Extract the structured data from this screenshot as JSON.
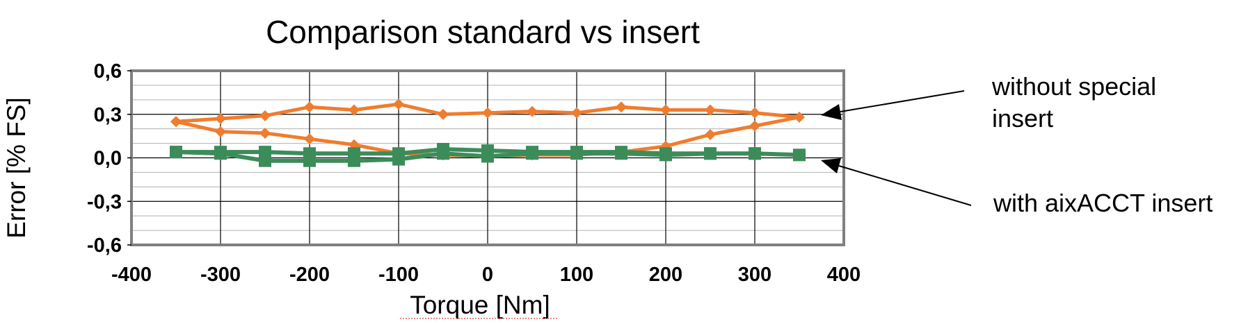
{
  "chart_data": {
    "type": "line",
    "title": "Comparison standard vs insert",
    "xlabel": "Torque [Nm]",
    "ylabel": "Error [% FS]",
    "xlim": [
      -400,
      400
    ],
    "ylim": [
      -0.6,
      0.6
    ],
    "x_ticks": [
      -400,
      -300,
      -200,
      -100,
      0,
      100,
      200,
      300,
      400
    ],
    "x_tick_labels": [
      "-400",
      "-300",
      "-200",
      "-100",
      "0",
      "100",
      "200",
      "300",
      "400"
    ],
    "y_ticks": [
      0.6,
      0.3,
      0.0,
      -0.3,
      -0.6
    ],
    "y_tick_labels": [
      "0,6",
      "0,3",
      "0,0",
      "-0,3",
      "-0,6"
    ],
    "grid": true,
    "series": [
      {
        "color": "#F07C2E",
        "marker": "diamond",
        "points": [
          [
            -350,
            0.25
          ],
          [
            -300,
            0.27
          ],
          [
            -250,
            0.29
          ],
          [
            -200,
            0.35
          ],
          [
            -150,
            0.33
          ],
          [
            -100,
            0.37
          ],
          [
            -50,
            0.3
          ],
          [
            0,
            0.31
          ],
          [
            50,
            0.32
          ],
          [
            100,
            0.31
          ],
          [
            150,
            0.35
          ],
          [
            200,
            0.33
          ],
          [
            250,
            0.33
          ],
          [
            300,
            0.31
          ],
          [
            350,
            0.28
          ],
          [
            300,
            0.22
          ],
          [
            250,
            0.16
          ],
          [
            200,
            0.08
          ],
          [
            150,
            0.04
          ],
          [
            100,
            0.02
          ],
          [
            50,
            0.02
          ],
          [
            0,
            0.01
          ],
          [
            -50,
            0.02
          ],
          [
            -100,
            0.03
          ],
          [
            -150,
            0.09
          ],
          [
            -200,
            0.13
          ],
          [
            -250,
            0.17
          ],
          [
            -300,
            0.18
          ],
          [
            -350,
            0.25
          ]
        ]
      },
      {
        "color": "#3C8C5A",
        "marker": "square",
        "points": [
          [
            -350,
            0.04
          ],
          [
            -300,
            0.04
          ],
          [
            -250,
            0.04
          ],
          [
            -200,
            0.03
          ],
          [
            -150,
            0.03
          ],
          [
            -100,
            0.03
          ],
          [
            -50,
            0.06
          ],
          [
            0,
            0.05
          ],
          [
            50,
            0.04
          ],
          [
            100,
            0.04
          ],
          [
            150,
            0.04
          ],
          [
            200,
            0.03
          ],
          [
            250,
            0.03
          ],
          [
            300,
            0.03
          ],
          [
            350,
            0.02
          ],
          [
            300,
            0.03
          ],
          [
            250,
            0.03
          ],
          [
            200,
            0.02
          ],
          [
            150,
            0.03
          ],
          [
            100,
            0.03
          ],
          [
            50,
            0.03
          ],
          [
            0,
            0.01
          ],
          [
            -50,
            0.03
          ],
          [
            -100,
            -0.01
          ],
          [
            -150,
            -0.02
          ],
          [
            -200,
            -0.02
          ],
          [
            -250,
            -0.02
          ],
          [
            -300,
            0.03
          ],
          [
            -350,
            0.04
          ]
        ]
      }
    ],
    "annotations": [
      {
        "text_lines": [
          "without special",
          "insert"
        ],
        "target": [
          350,
          0.3
        ]
      },
      {
        "text_lines": [
          "with aixACCT insert"
        ],
        "target": [
          350,
          0.0
        ]
      }
    ]
  }
}
